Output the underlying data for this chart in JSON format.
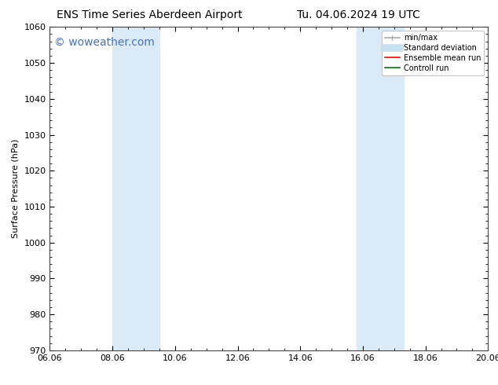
{
  "title": "ENS Time Series Aberdeen Airport",
  "title2": "Tu. 04.06.2024 19 UTC",
  "ylabel": "Surface Pressure (hPa)",
  "ylim": [
    970,
    1060
  ],
  "yticks": [
    970,
    980,
    990,
    1000,
    1010,
    1020,
    1030,
    1040,
    1050,
    1060
  ],
  "xlim": [
    0,
    14
  ],
  "xtick_labels": [
    "06.06",
    "08.06",
    "10.06",
    "12.06",
    "14.06",
    "16.06",
    "18.06",
    "20.06"
  ],
  "xtick_positions": [
    0,
    2,
    4,
    6,
    8,
    10,
    12,
    14
  ],
  "shaded_bands": [
    {
      "x_start": 2.0,
      "x_end": 3.5
    },
    {
      "x_start": 9.8,
      "x_end": 11.3
    }
  ],
  "shade_color": "#daeaf7",
  "watermark": "© woweather.com",
  "watermark_color": "#4472c4",
  "watermark_fontsize": 10,
  "legend_items": [
    {
      "label": "min/max",
      "color": "#aaaaaa",
      "lw": 1.2
    },
    {
      "label": "Standard deviation",
      "color": "#c8dff0",
      "lw": 7
    },
    {
      "label": "Ensemble mean run",
      "color": "#ff0000",
      "lw": 1.2
    },
    {
      "label": "Controll run",
      "color": "#008000",
      "lw": 1.2
    }
  ],
  "background_color": "#ffffff",
  "spine_color": "#444444",
  "title_fontsize": 10,
  "axis_fontsize": 8,
  "tick_fontsize": 8
}
